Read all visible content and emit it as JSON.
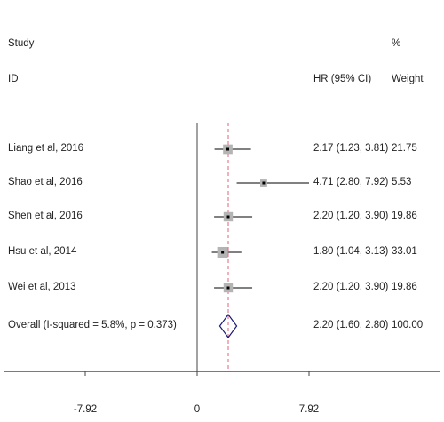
{
  "header": {
    "study_label": "Study",
    "id_label": "ID",
    "hr_label": "HR (95% CI)",
    "pct_label": "%",
    "weight_label": "Weight"
  },
  "chart_data": {
    "type": "forest",
    "studies": [
      {
        "label": "Liang et al, 2016",
        "hr": 2.17,
        "lo": 1.23,
        "hi": 3.81,
        "hr_text": "2.17 (1.23, 3.81)",
        "weight": 21.75,
        "weight_text": "21.75"
      },
      {
        "label": "Shao et al, 2016",
        "hr": 4.71,
        "lo": 2.8,
        "hi": 7.92,
        "hr_text": "4.71 (2.80, 7.92)",
        "weight": 5.53,
        "weight_text": "5.53"
      },
      {
        "label": "Shen et al, 2016",
        "hr": 2.2,
        "lo": 1.2,
        "hi": 3.9,
        "hr_text": "2.20 (1.20, 3.90)",
        "weight": 19.86,
        "weight_text": "19.86"
      },
      {
        "label": "Hsu et al, 2014",
        "hr": 1.8,
        "lo": 1.04,
        "hi": 3.13,
        "hr_text": "1.80 (1.04, 3.13)",
        "weight": 33.01,
        "weight_text": "33.01"
      },
      {
        "label": "Wei et al, 2013",
        "hr": 2.2,
        "lo": 1.2,
        "hi": 3.9,
        "hr_text": "2.20 (1.20, 3.90)",
        "weight": 19.86,
        "weight_text": "19.86"
      }
    ],
    "overall": {
      "label": "Overall  (I-squared = 5.8%, p = 0.373)",
      "hr": 2.2,
      "lo": 1.6,
      "hi": 2.8,
      "hr_text": "2.20 (1.60, 2.80)",
      "weight_text": "100.00"
    },
    "x_ticks": [
      {
        "value": -7.92,
        "label": "-7.92"
      },
      {
        "value": 0,
        "label": "0"
      },
      {
        "value": 7.92,
        "label": "7.92"
      }
    ],
    "xlim": [
      -7.92,
      7.92
    ],
    "null_line": 0,
    "colors": {
      "ci": "#000000",
      "box": "#b4b4b4",
      "diamond": "#1a1a7a",
      "overall_line": "#e0607a",
      "rule": "#7a7a7a"
    }
  }
}
